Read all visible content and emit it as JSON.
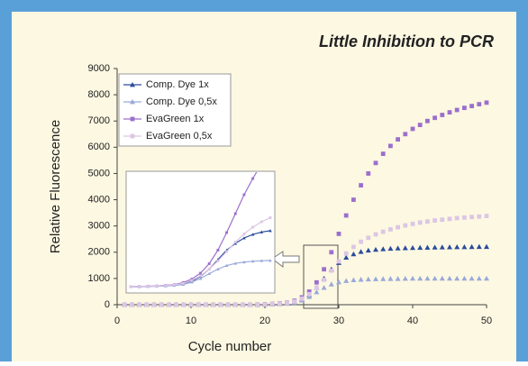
{
  "chart_data": {
    "type": "scatter",
    "title": "Little Inhibition to PCR",
    "x_label": "Cycle number",
    "y_label": "Relative Fluorescence",
    "x": [
      1,
      2,
      3,
      4,
      5,
      6,
      7,
      8,
      9,
      10,
      11,
      12,
      13,
      14,
      15,
      16,
      17,
      18,
      19,
      20,
      21,
      22,
      23,
      24,
      25,
      26,
      27,
      28,
      29,
      30,
      31,
      32,
      33,
      34,
      35,
      36,
      37,
      38,
      39,
      40,
      41,
      42,
      43,
      44,
      45,
      46,
      47,
      48,
      49,
      50
    ],
    "series": [
      {
        "name": "Comp. Dye 1x",
        "color": "#2b4c9b",
        "marker": "triangle",
        "values": [
          0,
          0,
          0,
          0,
          0,
          0,
          0,
          0,
          0,
          0,
          0,
          0,
          0,
          0,
          0,
          0,
          0,
          0,
          0,
          10,
          20,
          30,
          60,
          100,
          200,
          380,
          650,
          1000,
          1350,
          1600,
          1800,
          1930,
          2020,
          2070,
          2100,
          2120,
          2140,
          2150,
          2160,
          2170,
          2175,
          2180,
          2185,
          2190,
          2195,
          2200,
          2200,
          2205,
          2210,
          2210
        ]
      },
      {
        "name": "Comp. Dye 0,5x",
        "color": "#9aa9d9",
        "marker": "triangle",
        "values": [
          0,
          0,
          0,
          0,
          0,
          0,
          0,
          0,
          0,
          0,
          0,
          0,
          0,
          0,
          0,
          0,
          0,
          0,
          0,
          10,
          15,
          25,
          45,
          80,
          170,
          300,
          480,
          650,
          780,
          860,
          910,
          940,
          960,
          970,
          980,
          985,
          990,
          990,
          995,
          1000,
          1000,
          1000,
          1000,
          1000,
          1000,
          1000,
          1000,
          1000,
          1000,
          1000
        ]
      },
      {
        "name": "EvaGreen 1x",
        "color": "#9b6fcc",
        "marker": "square",
        "values": [
          0,
          0,
          0,
          0,
          0,
          0,
          0,
          0,
          0,
          0,
          0,
          0,
          0,
          0,
          0,
          0,
          0,
          0,
          10,
          20,
          30,
          50,
          80,
          150,
          280,
          500,
          850,
          1350,
          2000,
          2700,
          3400,
          4000,
          4550,
          5000,
          5400,
          5750,
          6050,
          6300,
          6500,
          6700,
          6850,
          7000,
          7120,
          7230,
          7330,
          7420,
          7500,
          7570,
          7640,
          7700
        ]
      },
      {
        "name": "EvaGreen 0,5x",
        "color": "#dcc6e4",
        "marker": "square",
        "values": [
          0,
          0,
          0,
          0,
          0,
          0,
          0,
          0,
          0,
          0,
          0,
          0,
          0,
          0,
          0,
          0,
          0,
          0,
          10,
          15,
          25,
          40,
          70,
          120,
          230,
          400,
          650,
          950,
          1300,
          1650,
          1950,
          2200,
          2400,
          2550,
          2680,
          2780,
          2870,
          2950,
          3020,
          3080,
          3130,
          3170,
          3210,
          3240,
          3270,
          3300,
          3320,
          3340,
          3360,
          3380
        ]
      }
    ],
    "xlim": [
      0,
      50
    ],
    "xticks": [
      0,
      10,
      20,
      30,
      40,
      50
    ],
    "ylim": [
      0,
      9000
    ],
    "yticks": [
      0,
      1000,
      2000,
      3000,
      4000,
      5000,
      6000,
      7000,
      8000,
      9000
    ],
    "grid": false,
    "legend": "upper left"
  }
}
